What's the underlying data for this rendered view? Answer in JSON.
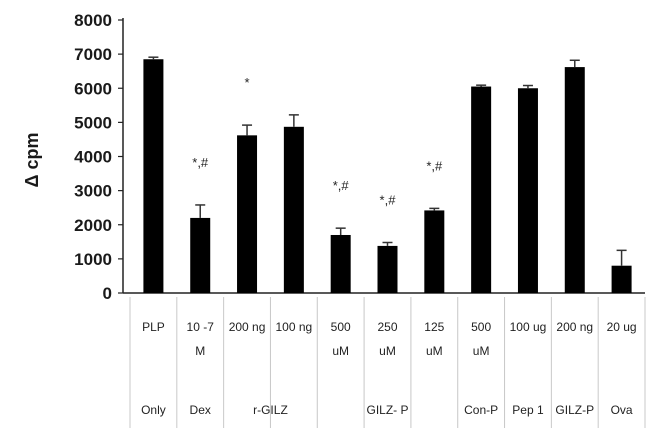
{
  "chart_data": {
    "type": "bar",
    "ylabel": "Δ cpm",
    "ylim": [
      0,
      8000
    ],
    "yticks": [
      "0",
      "1000",
      "2000",
      "3000",
      "4000",
      "5000",
      "6000",
      "7000",
      "8000"
    ],
    "categories": [
      [
        "PLP"
      ],
      [
        "10 -7",
        "M"
      ],
      [
        "200 ng"
      ],
      [
        "100 ng"
      ],
      [
        "500",
        "uM"
      ],
      [
        "250",
        "uM"
      ],
      [
        "125",
        "uM"
      ],
      [
        "500",
        "uM"
      ],
      [
        "100 ug"
      ],
      [
        "200 ng"
      ],
      [
        "20 ug"
      ]
    ],
    "groups": [
      {
        "label": "Only",
        "span": [
          0,
          0
        ]
      },
      {
        "label": "Dex",
        "span": [
          1,
          1
        ]
      },
      {
        "label": "r-GILZ",
        "span": [
          2,
          3
        ]
      },
      {
        "label": "GILZ- P",
        "span": [
          4,
          6
        ]
      },
      {
        "label": "Con-P",
        "span": [
          7,
          7
        ]
      },
      {
        "label": "Pep 1",
        "span": [
          8,
          8
        ]
      },
      {
        "label": "GILZ-P",
        "span": [
          9,
          9
        ]
      },
      {
        "label": "Ova",
        "span": [
          10,
          10
        ]
      }
    ],
    "values": [
      6850,
      2200,
      4620,
      4870,
      1700,
      1380,
      2420,
      6050,
      6000,
      6620,
      800
    ],
    "errors": [
      60,
      380,
      300,
      350,
      200,
      100,
      60,
      40,
      80,
      200,
      450
    ],
    "annotations": [
      "",
      "*,#",
      "*",
      "",
      "*,#",
      "*,#",
      "*,#",
      "",
      "",
      "",
      ""
    ],
    "bar_color": "#000000"
  }
}
